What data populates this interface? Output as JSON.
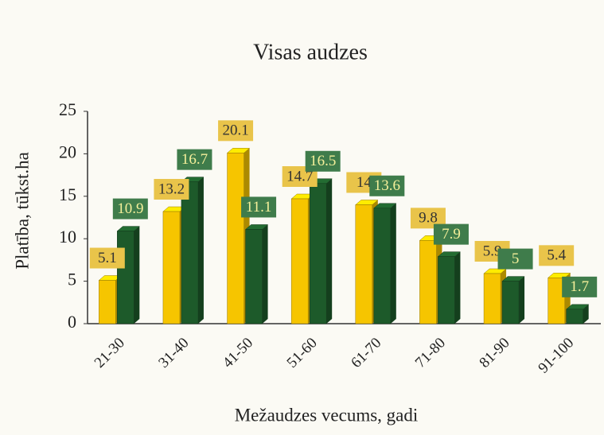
{
  "chart_data": {
    "type": "bar3d",
    "title": "Visas audzes",
    "x_label": "Mežaudzes vecums, gadi",
    "y_label": "Platība, tūkst.ha",
    "categories": [
      "21-30",
      "31-40",
      "41-50",
      "51-60",
      "61-70",
      "71-80",
      "81-90",
      "91-100"
    ],
    "series": [
      {
        "color": "#f6c500",
        "label_color": "#e9c44a",
        "values": [
          5.1,
          13.2,
          20.1,
          14.7,
          14.0,
          9.8,
          5.9,
          5.4
        ]
      },
      {
        "color": "#1d5a2a",
        "label_color": "#3f7c4b",
        "values": [
          10.9,
          16.7,
          11.1,
          16.5,
          13.6,
          7.9,
          5.0,
          1.7
        ]
      }
    ],
    "ylim": [
      0,
      25
    ],
    "yticks": [
      0,
      5,
      10,
      15,
      20,
      25
    ]
  }
}
